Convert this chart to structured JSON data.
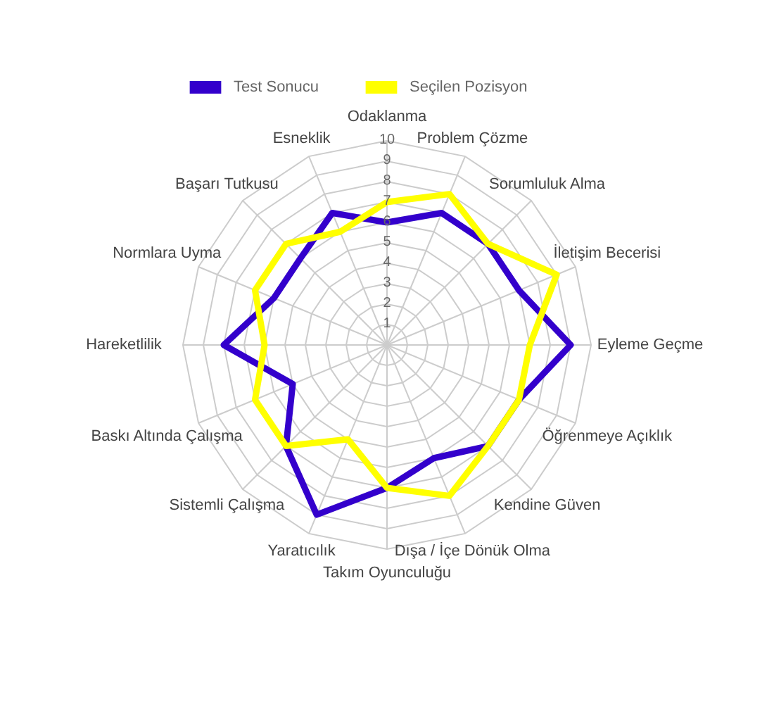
{
  "chart_data": {
    "type": "radar",
    "categories": [
      "Odaklanma",
      "Problem Çözme",
      "Sorumluluk Alma",
      "İletişim Becerisi",
      "Eyleme Geçme",
      "Öğrenmeye Açıklık",
      "Kendine Güven",
      "Dışa / İçe Dönük Olma",
      "Takım Oyunculuğu",
      "Yaratıcılık",
      "Sistemli Çalışma",
      "Baskı Altında Çalışma",
      "Hareketlilik",
      "Normlara Uyma",
      "Başarı Tutkusu",
      "Esneklik"
    ],
    "series": [
      {
        "name": "Test Sonucu",
        "color": "#3300cc",
        "values": [
          6,
          7,
          7,
          7,
          9,
          7,
          7,
          6,
          7,
          9,
          7,
          5,
          8,
          6,
          6,
          7
        ]
      },
      {
        "name": "Seçilen Pozisyon",
        "color": "#ffff00",
        "values": [
          7,
          8,
          7,
          9,
          7,
          7,
          7,
          8,
          7,
          5,
          7,
          7,
          6,
          7,
          7,
          6
        ]
      }
    ],
    "ylim": [
      0,
      10
    ],
    "yticks": [
      1,
      2,
      3,
      4,
      5,
      6,
      7,
      8,
      9,
      10
    ],
    "grid": true,
    "legend": "top",
    "line_style": "solid"
  }
}
